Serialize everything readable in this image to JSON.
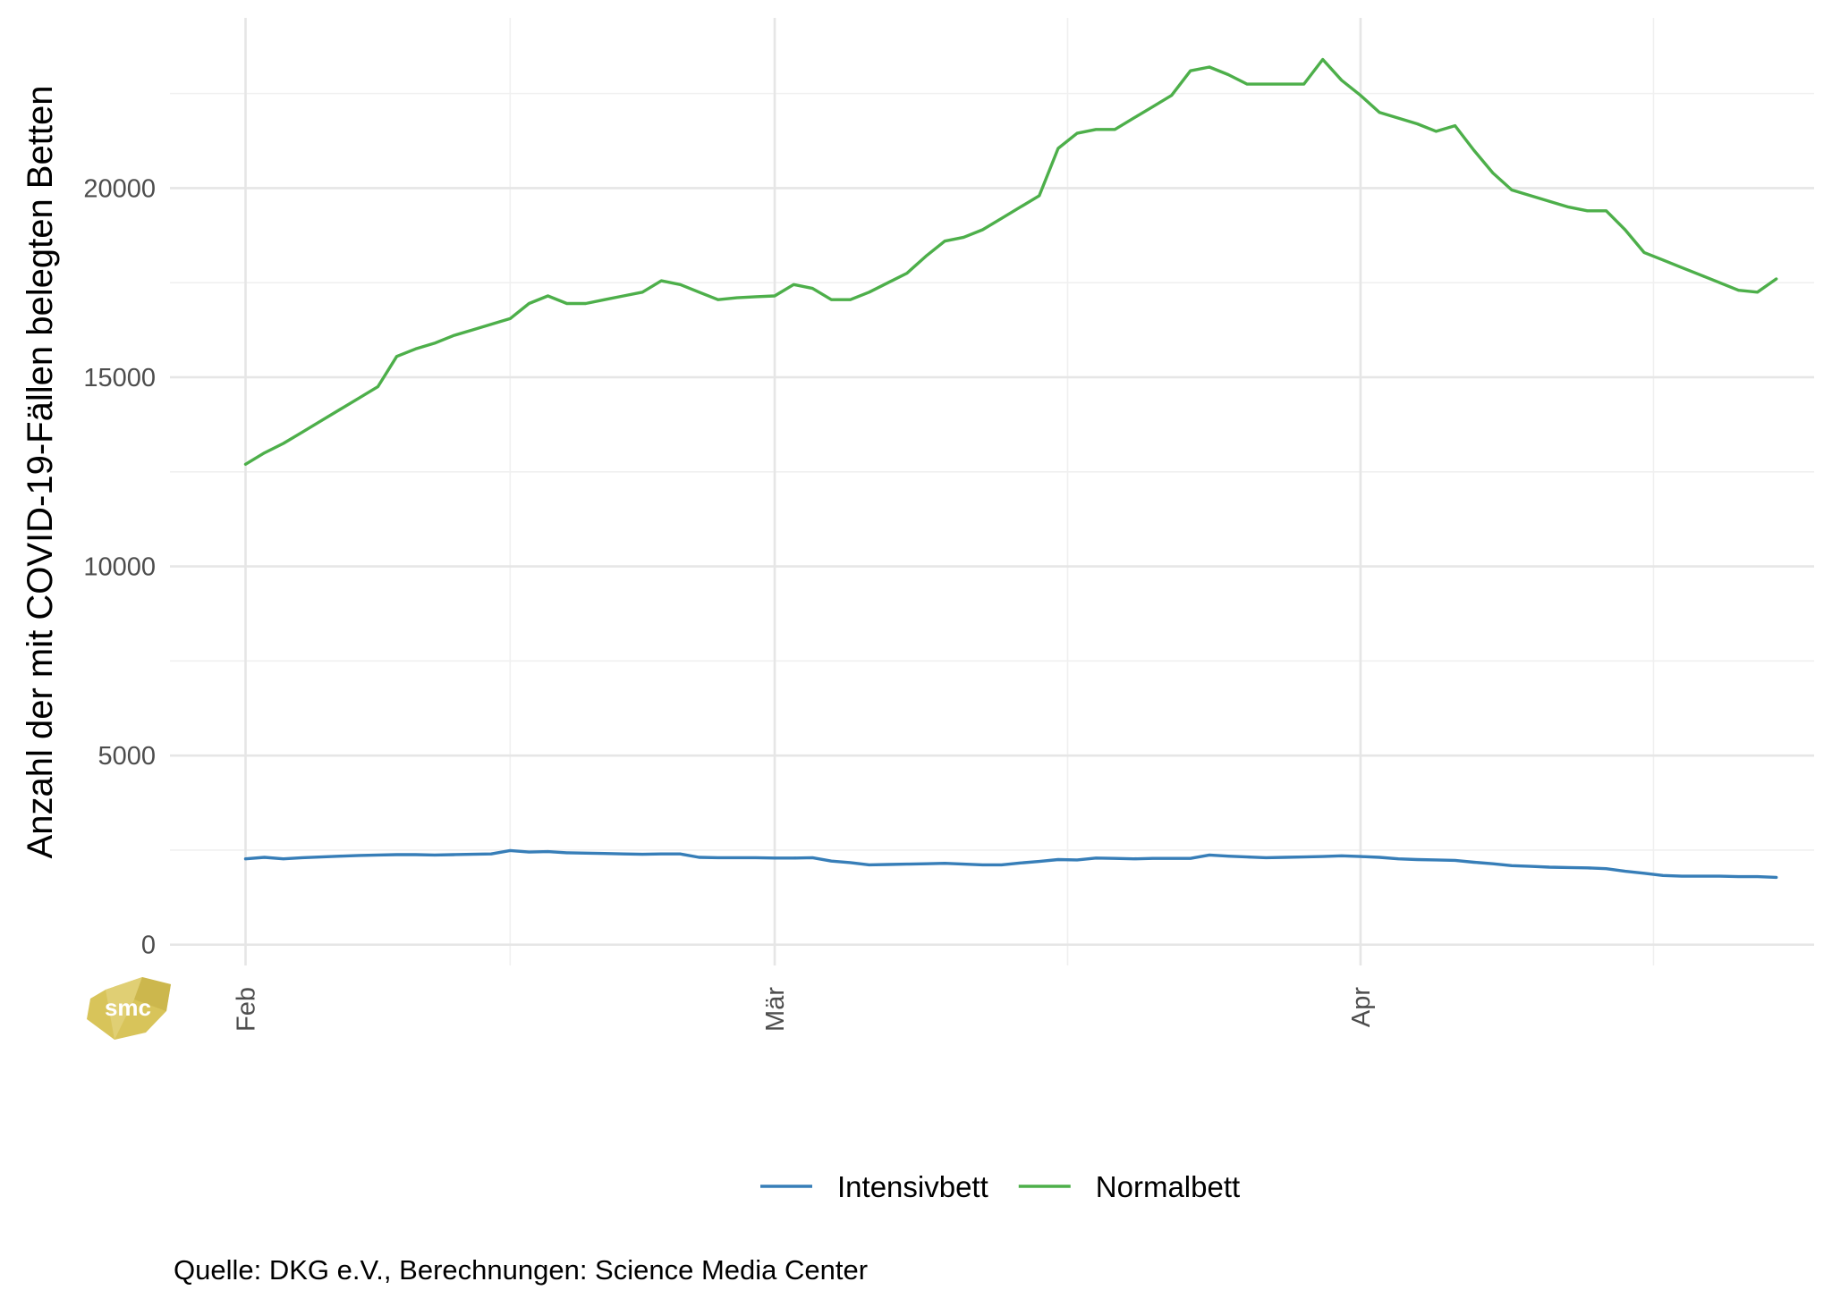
{
  "chart_data": {
    "type": "line",
    "title": "",
    "xlabel": "",
    "ylabel": "Anzahl der mit COVID-19-Fällen belegten Betten",
    "ylim": [
      -550,
      24500
    ],
    "yticks": [
      0,
      5000,
      10000,
      15000,
      20000
    ],
    "ytick_labels": [
      "0",
      "5000",
      "10000",
      "15000",
      "20000"
    ],
    "xlim": [
      "2022-01-28",
      "2022-04-25"
    ],
    "xticks": [
      "2022-02-01",
      "2022-03-01",
      "2022-04-01"
    ],
    "xtick_labels": [
      "Feb",
      "Mär",
      "Apr"
    ],
    "grid": true,
    "legend_position": "bottom",
    "x": [
      "2022-02-01",
      "2022-02-02",
      "2022-02-03",
      "2022-02-04",
      "2022-02-05",
      "2022-02-06",
      "2022-02-07",
      "2022-02-08",
      "2022-02-09",
      "2022-02-10",
      "2022-02-11",
      "2022-02-12",
      "2022-02-13",
      "2022-02-14",
      "2022-02-15",
      "2022-02-16",
      "2022-02-17",
      "2022-02-18",
      "2022-02-19",
      "2022-02-20",
      "2022-02-21",
      "2022-02-22",
      "2022-02-23",
      "2022-02-24",
      "2022-02-25",
      "2022-02-26",
      "2022-02-27",
      "2022-02-28",
      "2022-03-01",
      "2022-03-02",
      "2022-03-03",
      "2022-03-04",
      "2022-03-05",
      "2022-03-06",
      "2022-03-07",
      "2022-03-08",
      "2022-03-09",
      "2022-03-10",
      "2022-03-11",
      "2022-03-12",
      "2022-03-13",
      "2022-03-14",
      "2022-03-15",
      "2022-03-16",
      "2022-03-17",
      "2022-03-18",
      "2022-03-19",
      "2022-03-20",
      "2022-03-21",
      "2022-03-22",
      "2022-03-23",
      "2022-03-24",
      "2022-03-25",
      "2022-03-26",
      "2022-03-27",
      "2022-03-28",
      "2022-03-29",
      "2022-03-30",
      "2022-03-31",
      "2022-04-01",
      "2022-04-02",
      "2022-04-03",
      "2022-04-04",
      "2022-04-05",
      "2022-04-06",
      "2022-04-07",
      "2022-04-08",
      "2022-04-09",
      "2022-04-10",
      "2022-04-11",
      "2022-04-12",
      "2022-04-13",
      "2022-04-14",
      "2022-04-15",
      "2022-04-16",
      "2022-04-17",
      "2022-04-18",
      "2022-04-19",
      "2022-04-20",
      "2022-04-21",
      "2022-04-22",
      "2022-04-23"
    ],
    "series": [
      {
        "name": "Intensivbett",
        "color": "#377eb8",
        "values": [
          2270,
          2310,
          2270,
          2300,
          2320,
          2340,
          2360,
          2370,
          2380,
          2380,
          2370,
          2380,
          2390,
          2400,
          2490,
          2450,
          2460,
          2430,
          2420,
          2410,
          2400,
          2390,
          2400,
          2400,
          2310,
          2300,
          2300,
          2300,
          2290,
          2290,
          2300,
          2210,
          2170,
          2110,
          2120,
          2130,
          2140,
          2150,
          2130,
          2110,
          2110,
          2160,
          2200,
          2250,
          2240,
          2290,
          2280,
          2270,
          2280,
          2280,
          2280,
          2370,
          2340,
          2320,
          2300,
          2310,
          2320,
          2330,
          2350,
          2330,
          2310,
          2270,
          2250,
          2240,
          2230,
          2180,
          2140,
          2090,
          2070,
          2050,
          2040,
          2030,
          2010,
          1940,
          1890,
          1830,
          1810,
          1810,
          1810,
          1800,
          1800,
          1780
        ]
      },
      {
        "name": "Normalbett",
        "color": "#4daf4a",
        "values": [
          12700,
          13000,
          13250,
          13550,
          13850,
          14150,
          14450,
          14750,
          15550,
          15750,
          15900,
          16100,
          16250,
          16400,
          16550,
          16950,
          17150,
          16950,
          16950,
          17050,
          17150,
          17250,
          17550,
          17450,
          17250,
          17050,
          17100,
          17130,
          17150,
          17450,
          17350,
          17050,
          17050,
          17250,
          17500,
          17750,
          18200,
          18600,
          18700,
          18900,
          19200,
          19500,
          19800,
          21050,
          21450,
          21550,
          21550,
          21850,
          22150,
          22450,
          23100,
          23200,
          23000,
          22750,
          22750,
          22750,
          22750,
          23400,
          22850,
          22450,
          22000,
          21850,
          21700,
          21500,
          21650,
          21000,
          20400,
          19950,
          19800,
          19650,
          19500,
          19400,
          19400,
          18900,
          18300,
          18100,
          17900,
          17700,
          17500,
          17300,
          17250,
          17600
        ]
      }
    ],
    "caption": "Quelle: DKG e.V., Berechnungen: Science Media Center",
    "logo_text": "smc"
  }
}
